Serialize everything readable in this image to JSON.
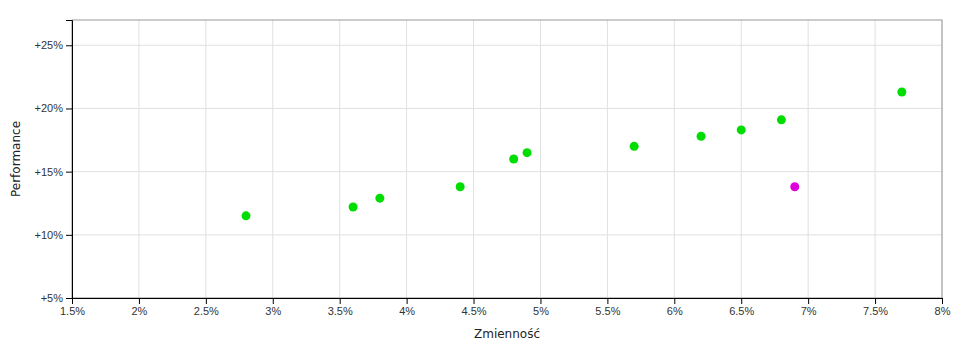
{
  "chart_data": {
    "type": "scatter",
    "xlabel": "Zmienność",
    "ylabel": "Performance",
    "xlim": [
      0.015,
      0.08
    ],
    "ylim": [
      0.05,
      0.27
    ],
    "xticks": [
      {
        "value": 0.015,
        "label": "1.5%"
      },
      {
        "value": 0.02,
        "label": "2%"
      },
      {
        "value": 0.025,
        "label": "2.5%"
      },
      {
        "value": 0.03,
        "label": "3%"
      },
      {
        "value": 0.035,
        "label": "3.5%"
      },
      {
        "value": 0.04,
        "label": "4%"
      },
      {
        "value": 0.045,
        "label": "4.5%"
      },
      {
        "value": 0.05,
        "label": "5%"
      },
      {
        "value": 0.055,
        "label": "5.5%"
      },
      {
        "value": 0.06,
        "label": "6%"
      },
      {
        "value": 0.065,
        "label": "6.5%"
      },
      {
        "value": 0.07,
        "label": "7%"
      },
      {
        "value": 0.075,
        "label": "7.5%"
      },
      {
        "value": 0.08,
        "label": "8%"
      }
    ],
    "yticks": [
      {
        "value": 0.05,
        "label": "+5%"
      },
      {
        "value": 0.1,
        "label": "+10%"
      },
      {
        "value": 0.15,
        "label": "+15%"
      },
      {
        "value": 0.2,
        "label": "+20%"
      },
      {
        "value": 0.25,
        "label": "+25%"
      }
    ],
    "grid": true,
    "series": [
      {
        "color": "#00dd00",
        "x": [
          0.028,
          0.036,
          0.038,
          0.044,
          0.048,
          0.049,
          0.057,
          0.062,
          0.065,
          0.068,
          0.077
        ],
        "values": [
          0.115,
          0.122,
          0.129,
          0.138,
          0.16,
          0.165,
          0.17,
          0.178,
          0.183,
          0.191,
          0.213
        ]
      },
      {
        "color": "#dd00dd",
        "x": [
          0.069
        ],
        "values": [
          0.138
        ]
      }
    ]
  }
}
